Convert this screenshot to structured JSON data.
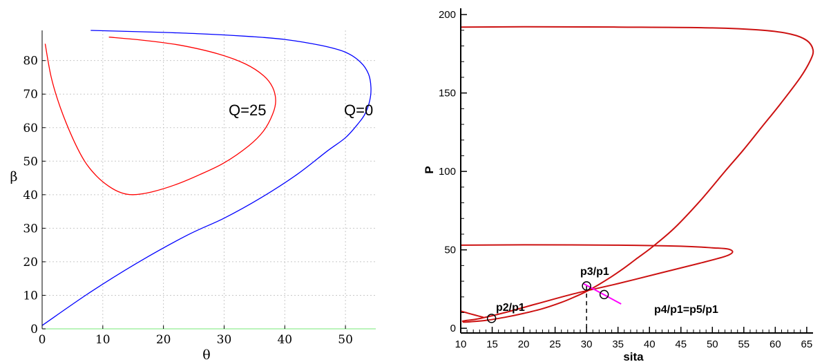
{
  "chart_data": [
    {
      "type": "line",
      "title": "",
      "xlabel": "θ",
      "ylabel": "β",
      "xlim": [
        0,
        55
      ],
      "ylim": [
        0,
        89
      ],
      "xticks": [
        0,
        10,
        20,
        30,
        40,
        50
      ],
      "yticks": [
        0,
        10,
        20,
        30,
        40,
        50,
        60,
        70,
        80
      ],
      "grid": true,
      "series": [
        {
          "name": "Q=0",
          "color": "#0000ff",
          "x": [
            0,
            8,
            16,
            24,
            30,
            36,
            42,
            47,
            50,
            52,
            53.2,
            54,
            54.2,
            53.8,
            52.5,
            50,
            46,
            40,
            34,
            26,
            18,
            8
          ],
          "y": [
            1,
            11,
            20,
            28,
            33,
            39,
            46,
            53,
            57,
            61,
            64,
            68,
            72,
            76,
            79.5,
            82.5,
            84.5,
            86.3,
            87.2,
            88,
            88.5,
            89
          ]
        },
        {
          "name": "Q=25",
          "color": "#ff0000",
          "x": [
            0.5,
            1.5,
            3,
            5,
            7,
            9,
            11,
            13,
            15,
            18,
            22,
            26,
            30,
            34,
            36.5,
            38,
            38.5,
            38,
            36.5,
            33.5,
            29,
            23,
            17,
            11
          ],
          "y": [
            85,
            75,
            66,
            57,
            50,
            45.5,
            42.5,
            40.6,
            40,
            40.8,
            43,
            46,
            49.5,
            54.5,
            59,
            64,
            68,
            72,
            75.5,
            79,
            82,
            84.5,
            86,
            87
          ]
        }
      ],
      "annotations": [
        "Q=25",
        "Q=0"
      ]
    },
    {
      "type": "line",
      "title": "",
      "xlabel": "sita",
      "ylabel": "P",
      "xlim": [
        10,
        66
      ],
      "ylim": [
        -3,
        204
      ],
      "xticks": [
        10,
        15,
        20,
        25,
        30,
        35,
        40,
        45,
        50,
        55,
        60,
        65
      ],
      "yticks": [
        0,
        50,
        100,
        150,
        200
      ],
      "grid": false,
      "series": [
        {
          "name": "",
          "color": "#cc1111",
          "x": [
            10,
            20,
            35,
            50,
            58,
            62.5,
            65,
            66,
            65.6,
            64,
            61,
            58,
            55,
            52,
            48,
            44,
            40.5,
            38,
            36,
            34,
            32,
            30,
            28,
            26,
            23,
            20,
            17,
            14,
            11,
            10.3
          ],
          "y": [
            192,
            192.2,
            192,
            191.5,
            190,
            187.5,
            183.5,
            177.5,
            171,
            160,
            144,
            129,
            114,
            100,
            81,
            64,
            52,
            44.5,
            38.5,
            33,
            28,
            23.5,
            19.8,
            16.5,
            12.5,
            9.5,
            7,
            5,
            4,
            4
          ]
        },
        {
          "name": "",
          "color": "#cc1111",
          "x": [
            10,
            20,
            35,
            45,
            50,
            52.5,
            53.2,
            52,
            48,
            42,
            35,
            28,
            22,
            17,
            13,
            11,
            10.2
          ],
          "y": [
            53,
            53.2,
            53,
            52.3,
            51.3,
            50.5,
            48.5,
            45.8,
            41.5,
            35.5,
            28.5,
            22,
            15.5,
            10,
            6.2,
            5,
            4.5
          ]
        },
        {
          "name": "",
          "color": "#cc1111",
          "x": [
            10,
            11,
            12.3,
            13.6
          ],
          "y": [
            11,
            9.8,
            8.4,
            7
          ]
        }
      ],
      "markers": [
        {
          "x": 14.9,
          "y": 6.3
        },
        {
          "x": 30,
          "y": 27
        },
        {
          "x": 32.8,
          "y": 21.5
        }
      ],
      "magenta_segment": {
        "x": [
          29.5,
          35.5
        ],
        "y": [
          28.5,
          15.5
        ],
        "color": "#ff00ff"
      },
      "dashed_drop": {
        "x": 30,
        "y_from": 27,
        "y_to": -3
      },
      "annotations": [
        "p2/p1",
        "p3/p1",
        "p4/p1=p5/p1"
      ]
    }
  ]
}
